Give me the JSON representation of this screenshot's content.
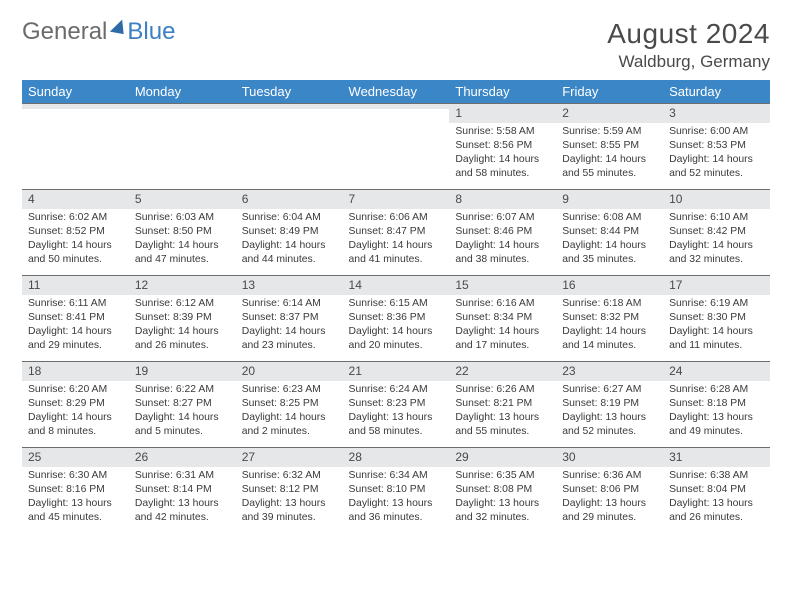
{
  "logo": {
    "part1": "General",
    "part2": "Blue"
  },
  "title": "August 2024",
  "location": "Waldburg, Germany",
  "day_names": [
    "Sunday",
    "Monday",
    "Tuesday",
    "Wednesday",
    "Thursday",
    "Friday",
    "Saturday"
  ],
  "colors": {
    "header_bg": "#3b86c7",
    "header_fg": "#ffffff",
    "daynum_bg": "#e6e7e8",
    "border": "#6d6d6d",
    "logo_blue": "#3b7fc4"
  },
  "weeks": [
    [
      {
        "n": "",
        "sr": "",
        "ss": "",
        "dl": ""
      },
      {
        "n": "",
        "sr": "",
        "ss": "",
        "dl": ""
      },
      {
        "n": "",
        "sr": "",
        "ss": "",
        "dl": ""
      },
      {
        "n": "",
        "sr": "",
        "ss": "",
        "dl": ""
      },
      {
        "n": "1",
        "sr": "Sunrise: 5:58 AM",
        "ss": "Sunset: 8:56 PM",
        "dl": "Daylight: 14 hours and 58 minutes."
      },
      {
        "n": "2",
        "sr": "Sunrise: 5:59 AM",
        "ss": "Sunset: 8:55 PM",
        "dl": "Daylight: 14 hours and 55 minutes."
      },
      {
        "n": "3",
        "sr": "Sunrise: 6:00 AM",
        "ss": "Sunset: 8:53 PM",
        "dl": "Daylight: 14 hours and 52 minutes."
      }
    ],
    [
      {
        "n": "4",
        "sr": "Sunrise: 6:02 AM",
        "ss": "Sunset: 8:52 PM",
        "dl": "Daylight: 14 hours and 50 minutes."
      },
      {
        "n": "5",
        "sr": "Sunrise: 6:03 AM",
        "ss": "Sunset: 8:50 PM",
        "dl": "Daylight: 14 hours and 47 minutes."
      },
      {
        "n": "6",
        "sr": "Sunrise: 6:04 AM",
        "ss": "Sunset: 8:49 PM",
        "dl": "Daylight: 14 hours and 44 minutes."
      },
      {
        "n": "7",
        "sr": "Sunrise: 6:06 AM",
        "ss": "Sunset: 8:47 PM",
        "dl": "Daylight: 14 hours and 41 minutes."
      },
      {
        "n": "8",
        "sr": "Sunrise: 6:07 AM",
        "ss": "Sunset: 8:46 PM",
        "dl": "Daylight: 14 hours and 38 minutes."
      },
      {
        "n": "9",
        "sr": "Sunrise: 6:08 AM",
        "ss": "Sunset: 8:44 PM",
        "dl": "Daylight: 14 hours and 35 minutes."
      },
      {
        "n": "10",
        "sr": "Sunrise: 6:10 AM",
        "ss": "Sunset: 8:42 PM",
        "dl": "Daylight: 14 hours and 32 minutes."
      }
    ],
    [
      {
        "n": "11",
        "sr": "Sunrise: 6:11 AM",
        "ss": "Sunset: 8:41 PM",
        "dl": "Daylight: 14 hours and 29 minutes."
      },
      {
        "n": "12",
        "sr": "Sunrise: 6:12 AM",
        "ss": "Sunset: 8:39 PM",
        "dl": "Daylight: 14 hours and 26 minutes."
      },
      {
        "n": "13",
        "sr": "Sunrise: 6:14 AM",
        "ss": "Sunset: 8:37 PM",
        "dl": "Daylight: 14 hours and 23 minutes."
      },
      {
        "n": "14",
        "sr": "Sunrise: 6:15 AM",
        "ss": "Sunset: 8:36 PM",
        "dl": "Daylight: 14 hours and 20 minutes."
      },
      {
        "n": "15",
        "sr": "Sunrise: 6:16 AM",
        "ss": "Sunset: 8:34 PM",
        "dl": "Daylight: 14 hours and 17 minutes."
      },
      {
        "n": "16",
        "sr": "Sunrise: 6:18 AM",
        "ss": "Sunset: 8:32 PM",
        "dl": "Daylight: 14 hours and 14 minutes."
      },
      {
        "n": "17",
        "sr": "Sunrise: 6:19 AM",
        "ss": "Sunset: 8:30 PM",
        "dl": "Daylight: 14 hours and 11 minutes."
      }
    ],
    [
      {
        "n": "18",
        "sr": "Sunrise: 6:20 AM",
        "ss": "Sunset: 8:29 PM",
        "dl": "Daylight: 14 hours and 8 minutes."
      },
      {
        "n": "19",
        "sr": "Sunrise: 6:22 AM",
        "ss": "Sunset: 8:27 PM",
        "dl": "Daylight: 14 hours and 5 minutes."
      },
      {
        "n": "20",
        "sr": "Sunrise: 6:23 AM",
        "ss": "Sunset: 8:25 PM",
        "dl": "Daylight: 14 hours and 2 minutes."
      },
      {
        "n": "21",
        "sr": "Sunrise: 6:24 AM",
        "ss": "Sunset: 8:23 PM",
        "dl": "Daylight: 13 hours and 58 minutes."
      },
      {
        "n": "22",
        "sr": "Sunrise: 6:26 AM",
        "ss": "Sunset: 8:21 PM",
        "dl": "Daylight: 13 hours and 55 minutes."
      },
      {
        "n": "23",
        "sr": "Sunrise: 6:27 AM",
        "ss": "Sunset: 8:19 PM",
        "dl": "Daylight: 13 hours and 52 minutes."
      },
      {
        "n": "24",
        "sr": "Sunrise: 6:28 AM",
        "ss": "Sunset: 8:18 PM",
        "dl": "Daylight: 13 hours and 49 minutes."
      }
    ],
    [
      {
        "n": "25",
        "sr": "Sunrise: 6:30 AM",
        "ss": "Sunset: 8:16 PM",
        "dl": "Daylight: 13 hours and 45 minutes."
      },
      {
        "n": "26",
        "sr": "Sunrise: 6:31 AM",
        "ss": "Sunset: 8:14 PM",
        "dl": "Daylight: 13 hours and 42 minutes."
      },
      {
        "n": "27",
        "sr": "Sunrise: 6:32 AM",
        "ss": "Sunset: 8:12 PM",
        "dl": "Daylight: 13 hours and 39 minutes."
      },
      {
        "n": "28",
        "sr": "Sunrise: 6:34 AM",
        "ss": "Sunset: 8:10 PM",
        "dl": "Daylight: 13 hours and 36 minutes."
      },
      {
        "n": "29",
        "sr": "Sunrise: 6:35 AM",
        "ss": "Sunset: 8:08 PM",
        "dl": "Daylight: 13 hours and 32 minutes."
      },
      {
        "n": "30",
        "sr": "Sunrise: 6:36 AM",
        "ss": "Sunset: 8:06 PM",
        "dl": "Daylight: 13 hours and 29 minutes."
      },
      {
        "n": "31",
        "sr": "Sunrise: 6:38 AM",
        "ss": "Sunset: 8:04 PM",
        "dl": "Daylight: 13 hours and 26 minutes."
      }
    ]
  ]
}
